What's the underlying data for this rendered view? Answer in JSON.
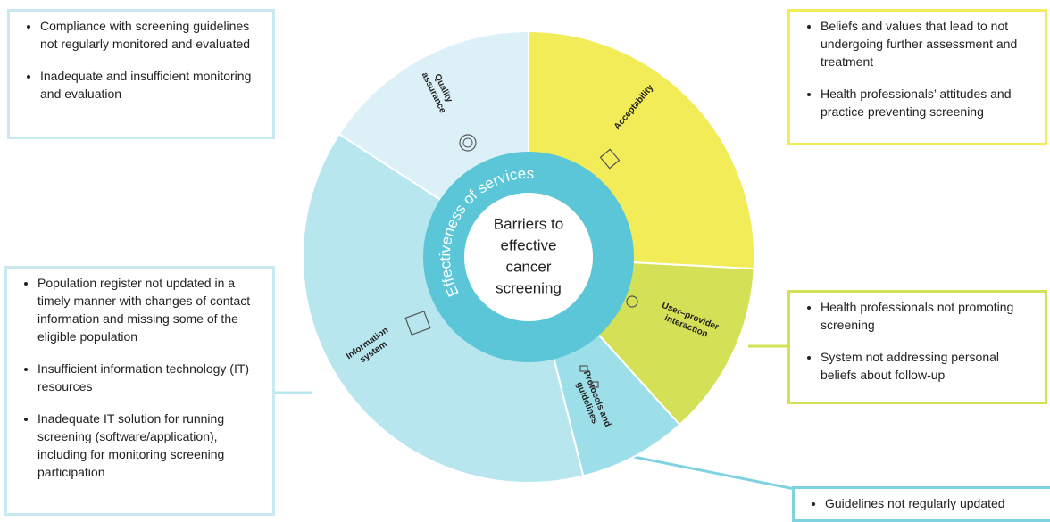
{
  "center": {
    "lines": [
      "Barriers to",
      "effective",
      "cancer",
      "screening"
    ]
  },
  "ring": {
    "label": "Effectiveness of services",
    "color": "#5bc6d8"
  },
  "segments": [
    {
      "lines": [
        "Acceptability"
      ],
      "color": "#f1ec57"
    },
    {
      "lines": [
        "User–provider",
        "interaction"
      ],
      "color": "#d4e157"
    },
    {
      "lines": [
        "Protocols and",
        "guidelines"
      ],
      "color": "#9ddfe9"
    },
    {
      "lines": [
        "Information",
        "system"
      ],
      "color": "#b8e6ef"
    },
    {
      "lines": [
        "Quality",
        "assurance"
      ],
      "color": "#dcf0f7"
    }
  ],
  "boxes": [
    {
      "border": "#c9e9f1",
      "items": [
        "Compliance with screening guidelines not regularly monitored and evaluated",
        "Inadequate and insufficient monitoring and evaluation"
      ]
    },
    {
      "border": "#f1ec57",
      "items": [
        "Beliefs and values that lead to not undergoing further assessment and treatment",
        "Health professionals’ attitudes and practice preventing screening"
      ]
    },
    {
      "border": "#d4e157",
      "items": [
        "Health professionals not promoting screening",
        "System not addressing personal beliefs about follow-up"
      ]
    },
    {
      "border": "#c9e9f1",
      "items": [
        "Population register not updated in a timely manner with changes of contact information and missing some of the eligible population",
        "Insufficient information technology (IT) resources",
        "Inadequate IT solution for running screening (software/application), including for monitoring screening participation"
      ]
    },
    {
      "border": "#7fd3e0",
      "items": [
        "Guidelines not regularly updated"
      ]
    }
  ]
}
